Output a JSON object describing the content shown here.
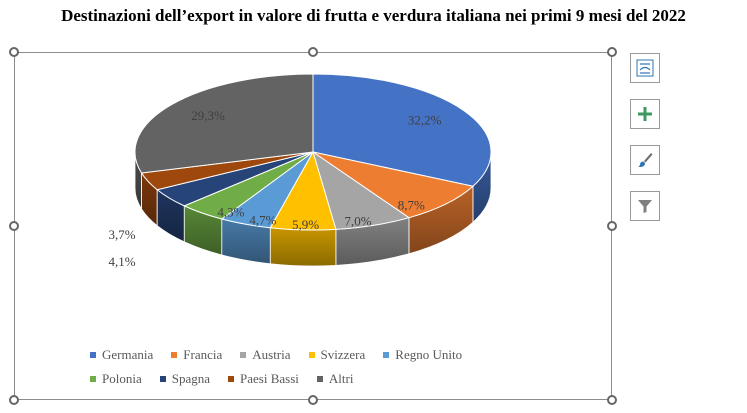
{
  "title": "Destinazioni dell’export in valore di frutta e verdura italiana nei primi 9 mesi del 2022",
  "chart_data": {
    "type": "pie",
    "style": "3d",
    "categories": [
      "Germania",
      "Francia",
      "Austria",
      "Svizzera",
      "Regno Unito",
      "Polonia",
      "Spagna",
      "Paesi Bassi",
      "Altri"
    ],
    "values": [
      32.2,
      8.7,
      7.0,
      5.9,
      4.7,
      4.3,
      4.1,
      3.7,
      29.3
    ],
    "labels": [
      "32,2%",
      "8,7%",
      "7,0%",
      "5,9%",
      "4,7%",
      "4,3%",
      "4,1%",
      "3,7%",
      "29,3%"
    ],
    "colors": [
      "#4472C4",
      "#ED7D31",
      "#A5A5A5",
      "#FFC000",
      "#5B9BD5",
      "#70AD47",
      "#264478",
      "#9E480E",
      "#636363"
    ],
    "legend_position": "bottom"
  },
  "side_buttons": [
    {
      "name": "layout-options-icon"
    },
    {
      "name": "chart-elements-plus-icon"
    },
    {
      "name": "chart-styles-brush-icon"
    },
    {
      "name": "chart-filters-icon"
    }
  ]
}
